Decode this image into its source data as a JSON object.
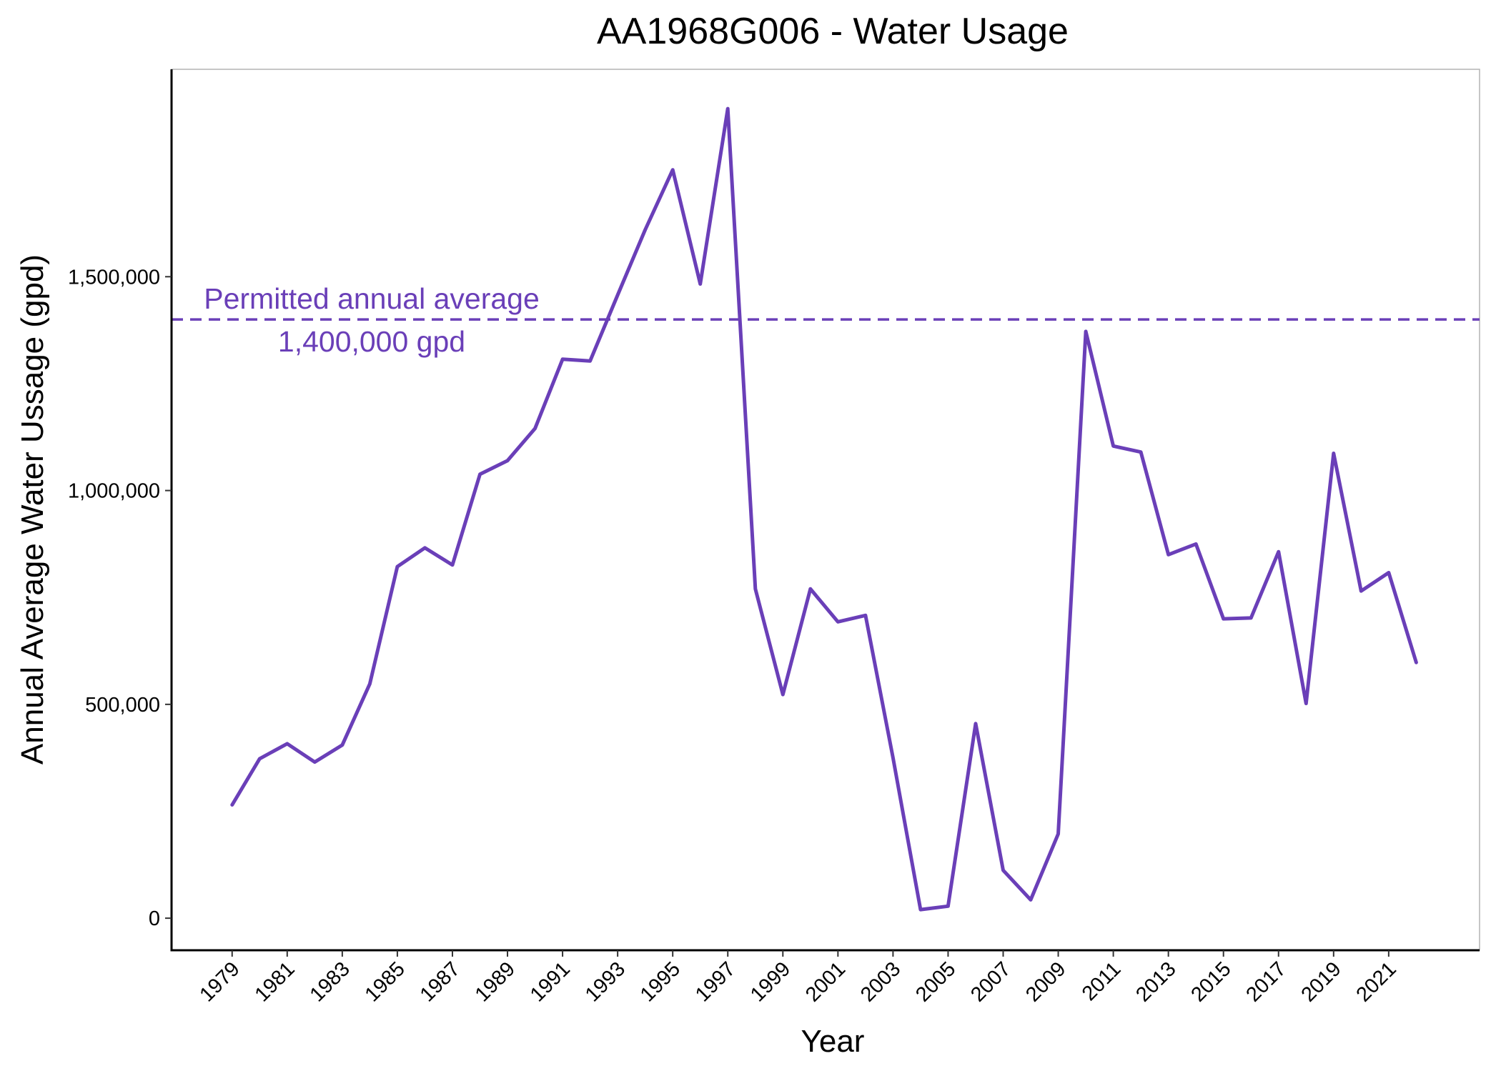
{
  "chart_data": {
    "type": "line",
    "title": "AA1968G006 - Water Usage",
    "xlabel": "Year",
    "ylabel": "Annual Average Water Ussage (gpd)",
    "x": [
      1979,
      1980,
      1981,
      1982,
      1983,
      1984,
      1985,
      1986,
      1987,
      1988,
      1989,
      1990,
      1991,
      1992,
      1993,
      1994,
      1995,
      1996,
      1997,
      1998,
      1999,
      2000,
      2001,
      2002,
      2003,
      2004,
      2005,
      2006,
      2007,
      2008,
      2009,
      2010,
      2011,
      2012,
      2013,
      2014,
      2015,
      2016,
      2017,
      2018,
      2019,
      2020,
      2021,
      2022
    ],
    "series": [
      {
        "values": [
          265000,
          373000,
          408000,
          365000,
          405000,
          548000,
          822000,
          866000,
          826000,
          1038000,
          1070000,
          1145000,
          1307000,
          1303000,
          1457000,
          1610000,
          1750000,
          1483000,
          1893000,
          770000,
          523000,
          770000,
          693000,
          708000,
          375000,
          20000,
          28000,
          455000,
          112000,
          43000,
          197000,
          1372000,
          1104000,
          1090000,
          850000,
          875000,
          700000,
          702000,
          857000,
          502000,
          1087000,
          765000,
          808000,
          598000
        ]
      }
    ],
    "x_tick_labels": [
      "1979",
      "1981",
      "1983",
      "1985",
      "1987",
      "1989",
      "1991",
      "1993",
      "1995",
      "1997",
      "1999",
      "2001",
      "2003",
      "2005",
      "2007",
      "2009",
      "2011",
      "2013",
      "2015",
      "2017",
      "2019",
      "2021"
    ],
    "y_tick_labels": [
      "0",
      "500,000",
      "1,000,000",
      "1,500,000"
    ],
    "y_ticks": [
      0,
      500000,
      1000000,
      1500000
    ],
    "xlim": [
      1976.8,
      2024.3
    ],
    "ylim": [
      -75000,
      1985000
    ],
    "grid": false,
    "line_color": "#6a3fb8",
    "reference_line": {
      "value": 1400000,
      "label_line1": "Permitted annual average",
      "label_line2": "1,400,000 gpd",
      "color": "#6a3fb8",
      "style": "dashed"
    }
  }
}
